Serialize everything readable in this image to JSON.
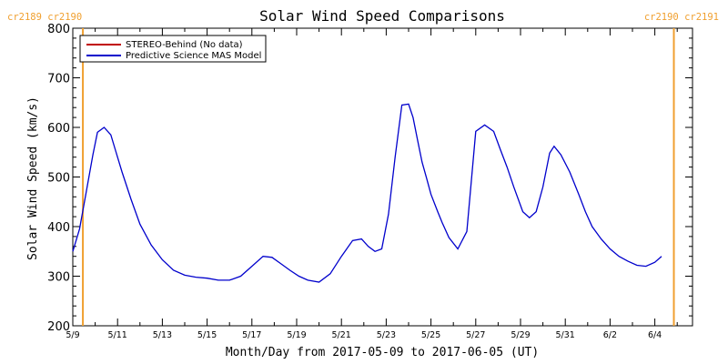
{
  "chart_data": {
    "type": "line",
    "title": "Solar Wind Speed Comparisons",
    "xlabel": "Month/Day from 2017-05-09 to 2017-06-05 (UT)",
    "ylabel": "Solar Wind Speed (km/s)",
    "ylim": [
      200,
      800
    ],
    "yticks": [
      "200",
      "300",
      "400",
      "500",
      "600",
      "700",
      "800"
    ],
    "xlim": [
      0,
      27
    ],
    "xtick_labels": [
      "5/9",
      "5/11",
      "5/13",
      "5/15",
      "5/17",
      "5/19",
      "5/21",
      "5/23",
      "5/25",
      "5/27",
      "5/29",
      "5/31",
      "6/2",
      "6/4"
    ],
    "legend_position": "top-left",
    "series": [
      {
        "name": "STEREO-Behind (No data)",
        "color": "#c00000",
        "x": [],
        "values": []
      },
      {
        "name": "Predictive Science MAS Model",
        "color": "#0000cc",
        "x": [
          0.0,
          0.3,
          0.6,
          0.9,
          1.1,
          1.4,
          1.7,
          1.9,
          2.2,
          2.6,
          3.0,
          3.5,
          4.0,
          4.5,
          5.0,
          5.5,
          6.0,
          6.5,
          7.0,
          7.5,
          8.0,
          8.5,
          8.9,
          9.3,
          9.7,
          10.1,
          10.5,
          11.0,
          11.5,
          12.0,
          12.5,
          12.9,
          13.2,
          13.5,
          13.8,
          14.1,
          14.4,
          14.7,
          15.0,
          15.2,
          15.4,
          15.6,
          15.8,
          16.0,
          16.3,
          16.5,
          16.8,
          17.2,
          17.6,
          18.0,
          18.4,
          18.8,
          19.1,
          19.4,
          19.7,
          20.1,
          20.4,
          20.7,
          21.0,
          21.3,
          21.5,
          21.8,
          22.2,
          22.6,
          22.9,
          23.2,
          23.6,
          24.0,
          24.4,
          24.8,
          25.2,
          25.6,
          26.0,
          26.3,
          26.6,
          26.8,
          27.0
        ],
        "values": [
          350,
          395,
          470,
          545,
          590,
          600,
          585,
          555,
          510,
          455,
          405,
          363,
          333,
          312,
          302,
          298,
          296,
          292,
          292,
          300,
          320,
          340,
          338,
          325,
          312,
          300,
          292,
          288,
          305,
          340,
          372,
          375,
          360,
          350,
          355,
          425,
          540,
          645,
          647,
          620,
          575,
          530,
          498,
          465,
          430,
          408,
          378,
          355,
          390,
          592,
          605,
          592,
          555,
          520,
          480,
          430,
          418,
          430,
          480,
          548,
          562,
          545,
          510,
          465,
          430,
          400,
          375,
          355,
          340,
          330,
          322,
          320,
          328,
          340,
          null,
          null,
          null
        ]
      }
    ],
    "cr_markers": [
      {
        "labels": "cr2189 cr2190",
        "x": 0.45,
        "color": "#f0a030",
        "label_side": "left"
      },
      {
        "labels": "cr2190 cr2191",
        "x": 26.85,
        "color": "#f0a030",
        "label_side": "right"
      }
    ]
  }
}
